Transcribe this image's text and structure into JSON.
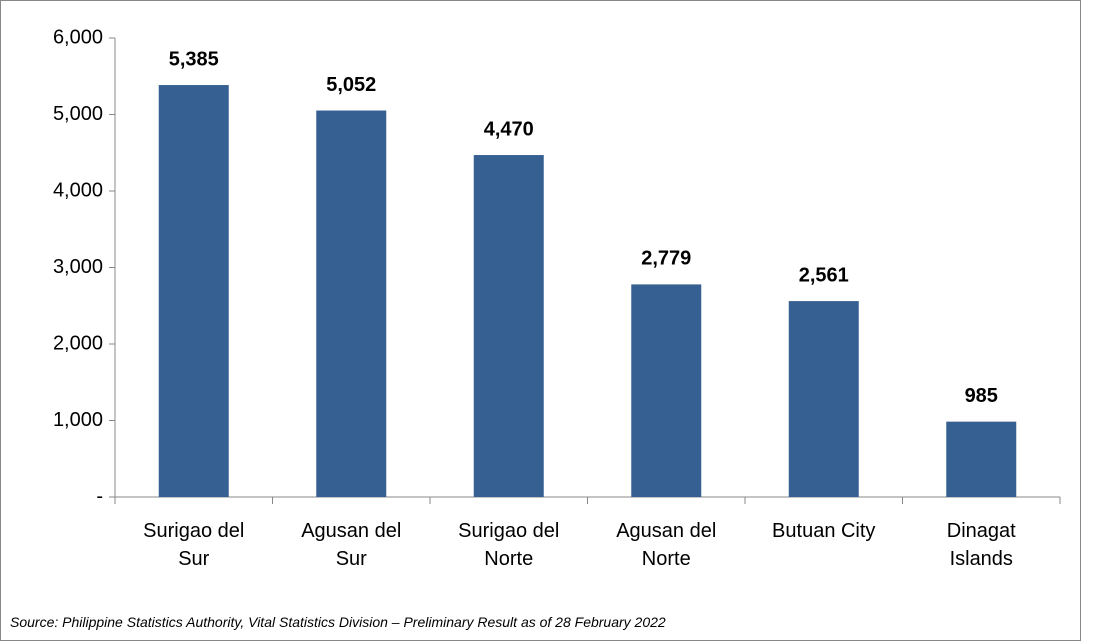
{
  "chart_data": {
    "type": "bar",
    "categories": [
      "Surigao del Sur",
      "Agusan del Sur",
      "Surigao del Norte",
      "Agusan del Norte",
      "Butuan City",
      "Dinagat Islands"
    ],
    "values": [
      5385,
      5052,
      4470,
      2779,
      2561,
      985
    ],
    "value_labels": [
      "5,385",
      "5,052",
      "4,470",
      "2,779",
      "2,561",
      "985"
    ],
    "color": "#366092",
    "ylim": [
      0,
      6000
    ],
    "yticks": [
      {
        "value": 0,
        "label": "-"
      },
      {
        "value": 1000,
        "label": "1,000"
      },
      {
        "value": 2000,
        "label": "2,000"
      },
      {
        "value": 3000,
        "label": "3,000"
      },
      {
        "value": 4000,
        "label": "4,000"
      },
      {
        "value": 5000,
        "label": "5,000"
      },
      {
        "value": 6000,
        "label": "6,000"
      }
    ],
    "grid": false,
    "source": "Source:  Philippine Statistics Authority, Vital Statistics Division – Preliminary Result as of 28 February 2022"
  }
}
